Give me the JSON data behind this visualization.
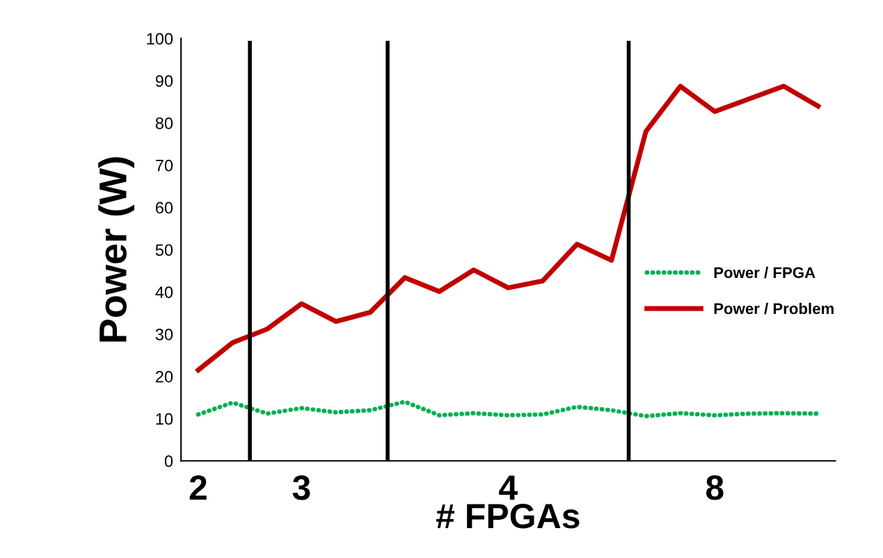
{
  "chart_data": {
    "type": "line",
    "xlabel": "# FPGAs",
    "ylabel": "Power (W)",
    "categories": [
      "2",
      null,
      null,
      "3",
      null,
      null,
      null,
      null,
      null,
      "4",
      null,
      null,
      null,
      null,
      null,
      "8",
      null,
      null,
      null
    ],
    "ylim": [
      0,
      100
    ],
    "yticks": [
      0,
      10,
      20,
      30,
      40,
      50,
      60,
      70,
      80,
      90,
      100
    ],
    "grid": false,
    "legend": "right",
    "series": [
      {
        "name": "Power / FPGA",
        "color": "#00b050",
        "line_style": "dotted",
        "values": [
          11,
          13.8,
          11.2,
          12.5,
          11.5,
          12,
          14,
          10.8,
          11.3,
          10.8,
          11,
          12.8,
          12,
          10.6,
          11.3,
          10.8,
          11.2,
          11.3,
          11.2
        ]
      },
      {
        "name": "Power / Problem",
        "color": "#c00000",
        "line_style": "solid",
        "values": [
          21.5,
          28,
          31.2,
          37.2,
          33,
          35.2,
          43.4,
          40.1,
          45.2,
          41,
          42.6,
          51.3,
          47.5,
          78,
          88.7,
          82.7,
          85.7,
          88.7,
          84
        ]
      }
    ]
  }
}
